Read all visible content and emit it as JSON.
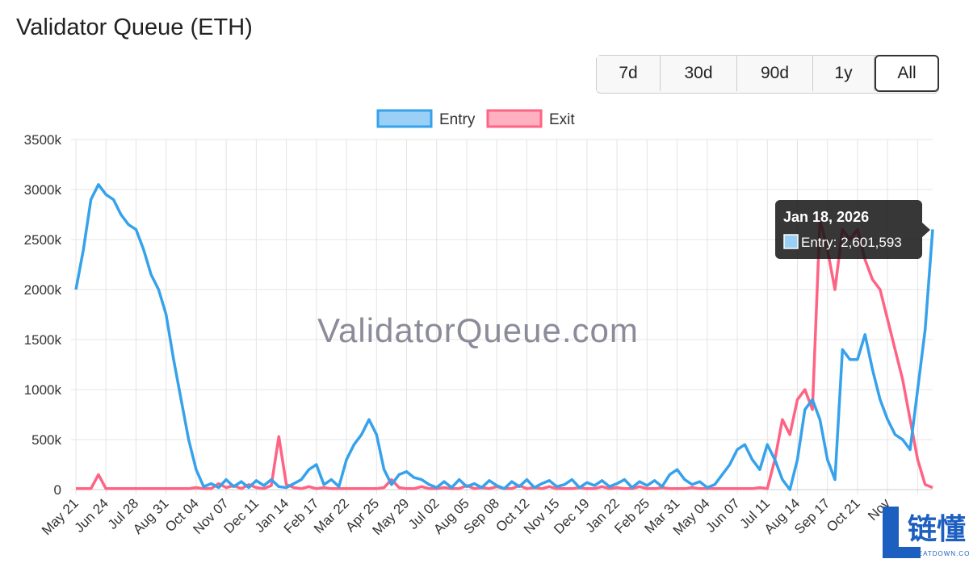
{
  "title": "Validator Queue (ETH)",
  "buttons": [
    "7d",
    "30d",
    "90d",
    "1y",
    "All"
  ],
  "active_button": "All",
  "watermark": "ValidatorQueue.com",
  "logo": {
    "text": "链懂",
    "subtext": "NEATDOWN.COM"
  },
  "chart_data": {
    "type": "line",
    "categories": [
      "May 21",
      null,
      null,
      null,
      "Jun 24",
      null,
      null,
      null,
      "Jul 28",
      null,
      null,
      null,
      "Aug 31",
      null,
      null,
      null,
      "Oct 04",
      null,
      null,
      null,
      "Nov 07",
      null,
      null,
      null,
      "Dec 11",
      null,
      null,
      null,
      "Jan 14",
      null,
      null,
      null,
      "Feb 17",
      null,
      null,
      null,
      "Mar 22",
      null,
      null,
      null,
      "Apr 25",
      null,
      null,
      null,
      "May 29",
      null,
      null,
      null,
      "Jul 02",
      null,
      null,
      null,
      "Aug 05",
      null,
      null,
      null,
      "Sep 08",
      null,
      null,
      null,
      "Oct 12",
      null,
      null,
      null,
      "Nov 15",
      null,
      null,
      null,
      "Dec 19",
      null,
      null,
      null,
      "Jan 22",
      null,
      null,
      null,
      "Feb 25",
      null,
      null,
      null,
      "Mar 31",
      null,
      null,
      null,
      "May 04",
      null,
      null,
      null,
      "Jun 07",
      null,
      null,
      null,
      "Jul 11",
      null,
      null,
      null,
      "Aug 14",
      null,
      null,
      null,
      "Sep 17",
      null,
      null,
      null,
      "Oct 21",
      null,
      null,
      null,
      "Nov",
      null,
      null,
      null,
      null,
      null,
      null
    ],
    "series": [
      {
        "name": "Entry",
        "color": "#36a2eb",
        "fill": "#9ad0f5",
        "values": [
          2000000,
          2400000,
          2900000,
          3050000,
          2950000,
          2900000,
          2750000,
          2650000,
          2600000,
          2400000,
          2150000,
          2000000,
          1750000,
          1300000,
          900000,
          500000,
          200000,
          30000,
          60000,
          20000,
          100000,
          30000,
          80000,
          20000,
          90000,
          40000,
          100000,
          30000,
          20000,
          60000,
          100000,
          200000,
          250000,
          50000,
          100000,
          30000,
          300000,
          450000,
          550000,
          700000,
          550000,
          200000,
          50000,
          150000,
          180000,
          120000,
          100000,
          50000,
          20000,
          80000,
          20000,
          100000,
          30000,
          60000,
          20000,
          90000,
          40000,
          10000,
          80000,
          30000,
          100000,
          20000,
          60000,
          90000,
          30000,
          50000,
          100000,
          20000,
          70000,
          40000,
          90000,
          30000,
          60000,
          100000,
          20000,
          80000,
          40000,
          90000,
          30000,
          150000,
          200000,
          100000,
          50000,
          80000,
          20000,
          50000,
          150000,
          250000,
          400000,
          450000,
          300000,
          200000,
          450000,
          300000,
          100000,
          0,
          300000,
          800000,
          900000,
          700000,
          300000,
          100000,
          1400000,
          1300000,
          1300000,
          1550000,
          1200000,
          900000,
          700000,
          550000,
          500000,
          400000,
          1000000,
          1600000,
          2601593
        ]
      },
      {
        "name": "Exit",
        "color": "#ff6384",
        "fill": "#ffb1c1",
        "values": [
          10000,
          10000,
          10000,
          150000,
          10000,
          10000,
          10000,
          10000,
          10000,
          10000,
          10000,
          10000,
          10000,
          10000,
          10000,
          10000,
          20000,
          10000,
          10000,
          60000,
          20000,
          40000,
          10000,
          50000,
          20000,
          10000,
          40000,
          530000,
          50000,
          20000,
          10000,
          30000,
          10000,
          20000,
          10000,
          10000,
          10000,
          10000,
          10000,
          10000,
          10000,
          20000,
          100000,
          20000,
          10000,
          10000,
          30000,
          10000,
          10000,
          20000,
          10000,
          10000,
          40000,
          10000,
          20000,
          10000,
          30000,
          10000,
          10000,
          40000,
          10000,
          20000,
          10000,
          30000,
          10000,
          10000,
          10000,
          20000,
          10000,
          10000,
          30000,
          10000,
          20000,
          10000,
          10000,
          30000,
          10000,
          10000,
          20000,
          10000,
          10000,
          10000,
          20000,
          10000,
          10000,
          10000,
          10000,
          10000,
          10000,
          10000,
          10000,
          20000,
          10000,
          300000,
          700000,
          550000,
          900000,
          1000000,
          800000,
          2700000,
          2400000,
          2000000,
          2600000,
          2500000,
          2600000,
          2300000,
          2100000,
          2000000,
          1700000,
          1400000,
          1100000,
          700000,
          300000,
          50000,
          20000
        ]
      }
    ],
    "ylim": [
      0,
      3500000
    ],
    "yticks": [
      0,
      {
        "value": 500000,
        "label": "500k"
      },
      {
        "value": 1000000,
        "label": "1000k"
      },
      {
        "value": 1500000,
        "label": "1500k"
      },
      {
        "value": 2000000,
        "label": "2000k"
      },
      {
        "value": 2500000,
        "label": "2500k"
      },
      {
        "value": 3000000,
        "label": "3000k"
      },
      {
        "value": 3500000,
        "label": "3500k"
      }
    ],
    "grid": true,
    "legend": "top",
    "tooltip": {
      "title": "Jan 18, 2026",
      "text": "Entry: 2,601,593",
      "series": 0
    }
  }
}
